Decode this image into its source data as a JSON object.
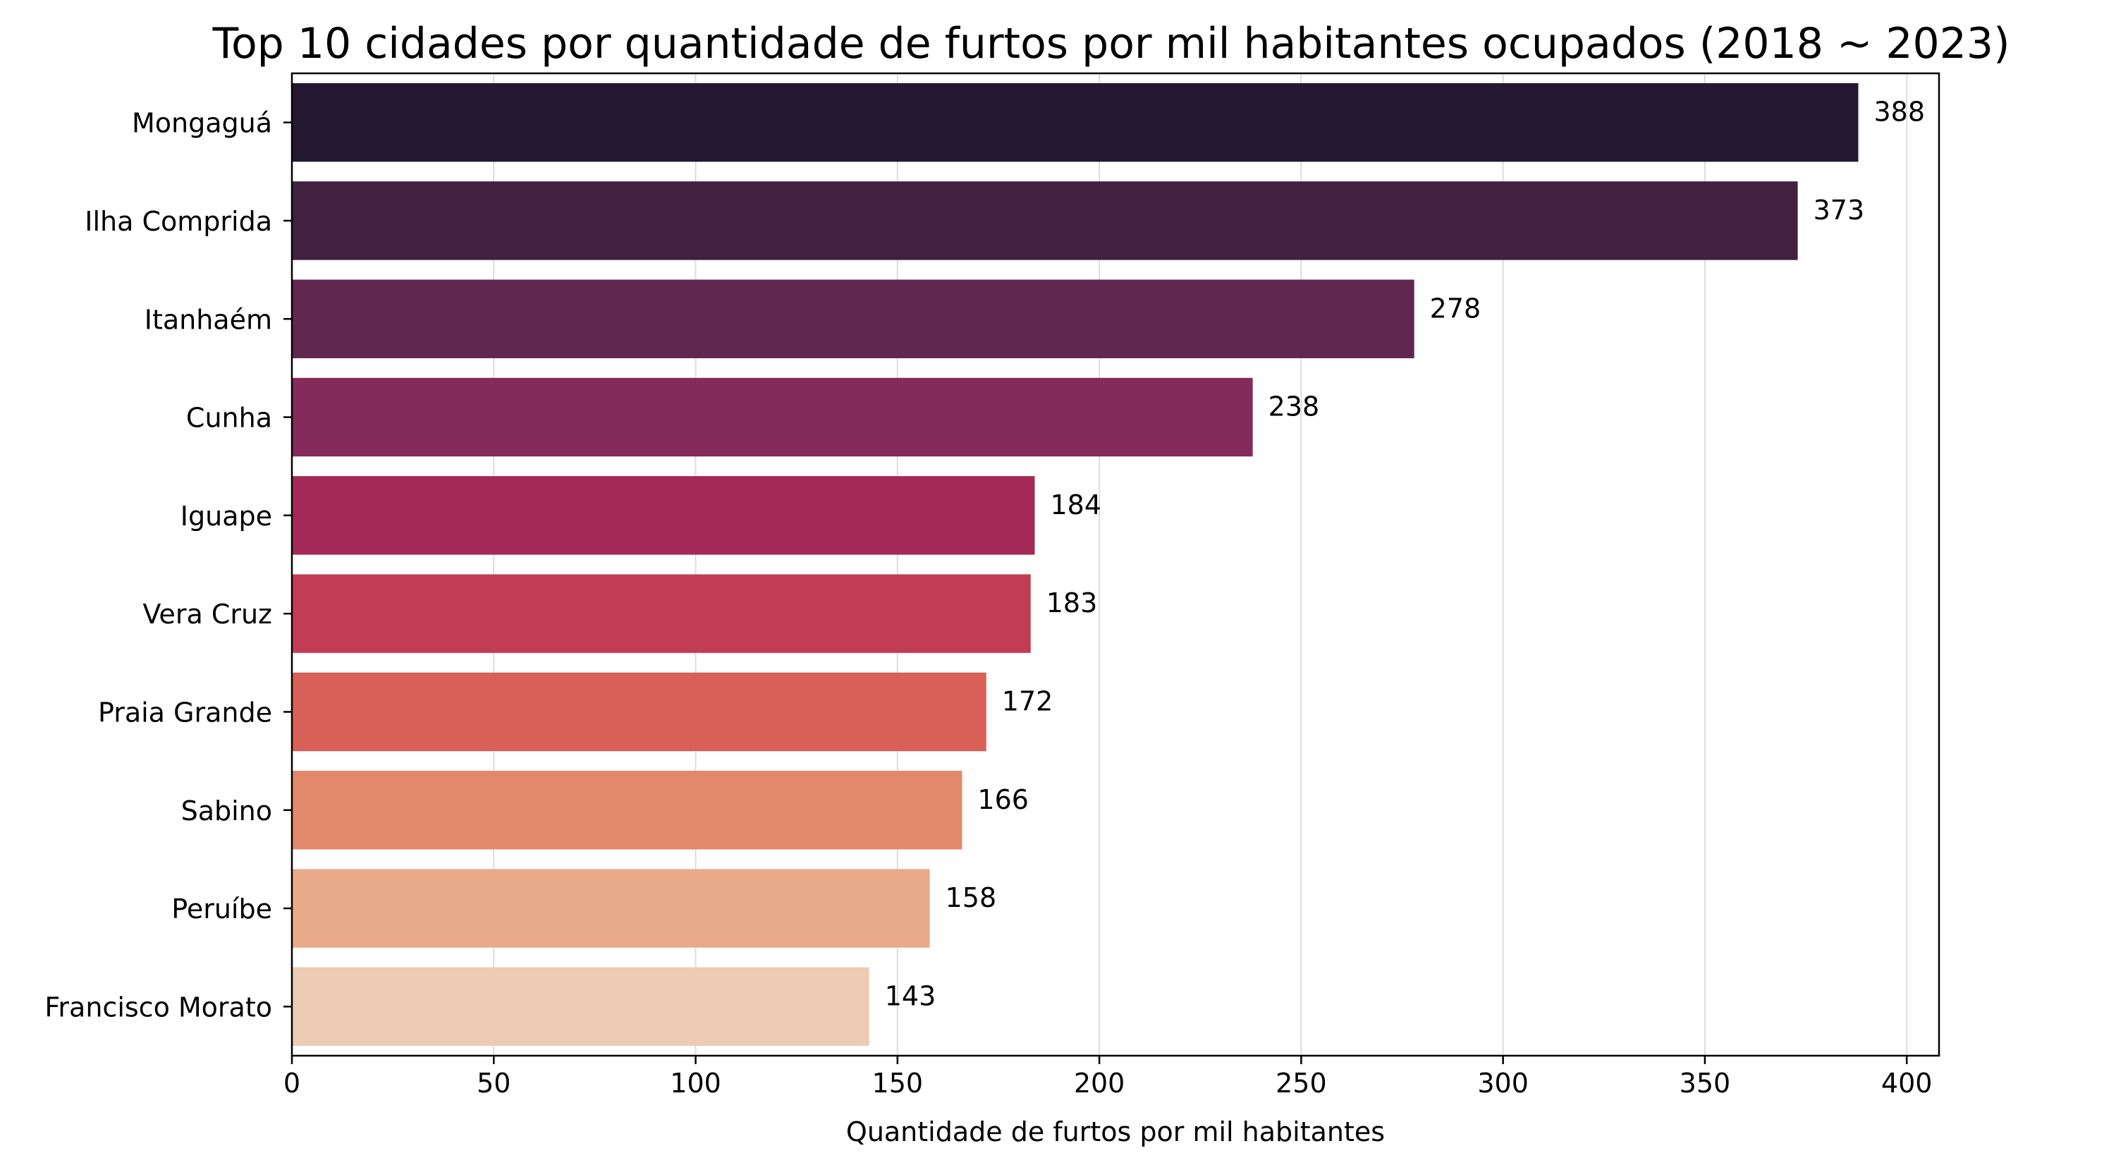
{
  "chart_data": {
    "type": "bar",
    "orientation": "horizontal",
    "title": "Top 10 cidades por quantidade de furtos por mil habitantes ocupados (2018 ~ 2023)",
    "xlabel": "Quantidade de furtos por mil habitantes",
    "ylabel": "",
    "categories": [
      "Mongaguá",
      "Ilha Comprida",
      "Itanhaém",
      "Cunha",
      "Iguape",
      "Vera Cruz",
      "Praia Grande",
      "Sabino",
      "Peruíbe",
      "Francisco Morato"
    ],
    "values": [
      388,
      373,
      278,
      238,
      184,
      183,
      172,
      166,
      158,
      143
    ],
    "data_labels": [
      "388",
      "373",
      "278",
      "238",
      "184",
      "183",
      "172",
      "166",
      "158",
      "143"
    ],
    "xlim": [
      0,
      408
    ],
    "xticks": [
      0,
      50,
      100,
      150,
      200,
      250,
      300,
      350,
      400
    ],
    "xtick_labels": [
      "0",
      "50",
      "100",
      "150",
      "200",
      "250",
      "300",
      "350",
      "400"
    ],
    "grid": "vertical",
    "colors": [
      "#231830",
      "#412040",
      "#60274f",
      "#842b5a",
      "#a32a57",
      "#c23d53",
      "#d86056",
      "#e2896b",
      "#e8aa89",
      "#eecbb5"
    ]
  }
}
